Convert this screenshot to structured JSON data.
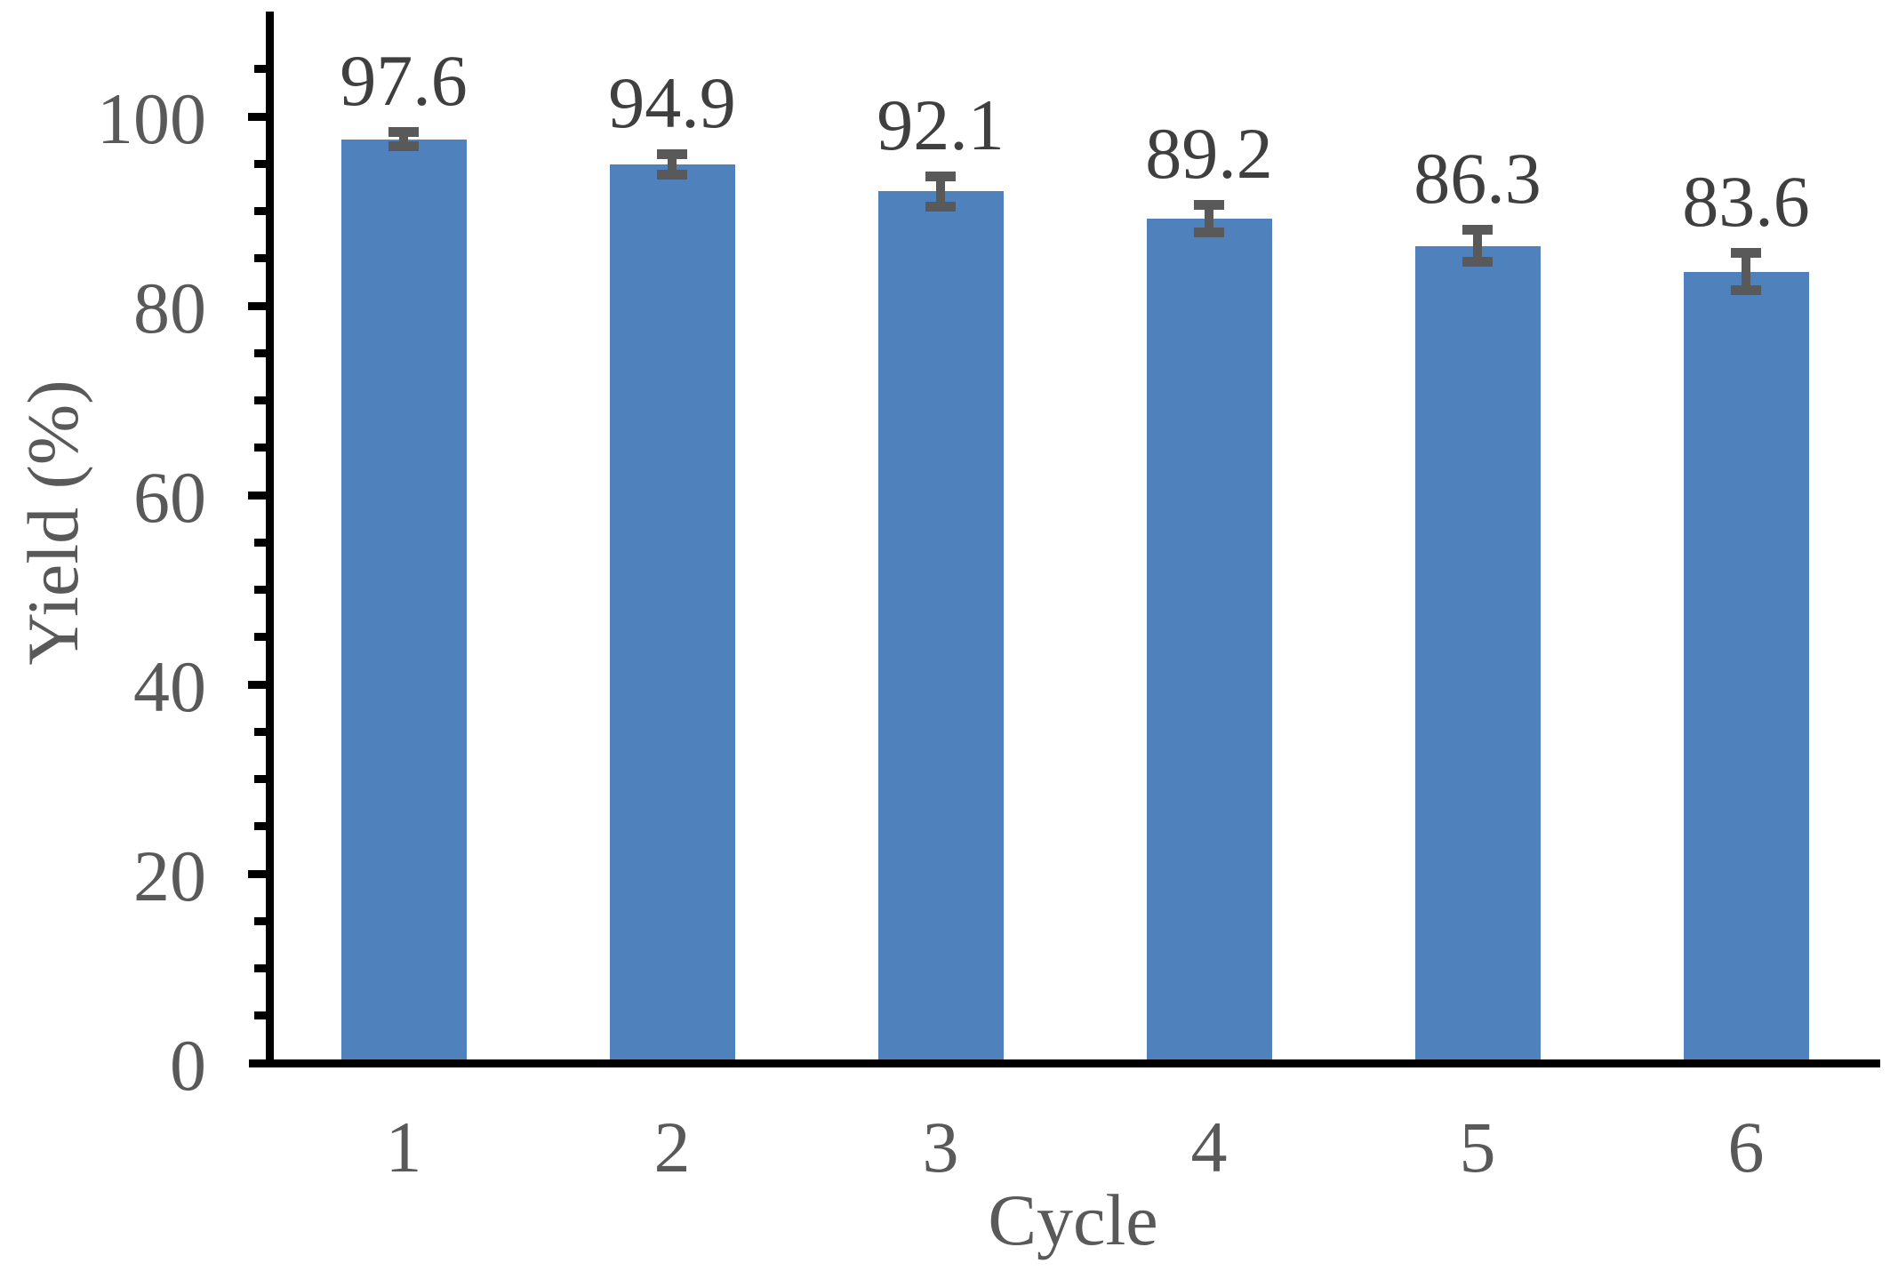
{
  "figure": {
    "background": "#ffffff"
  },
  "chart_data": {
    "type": "bar",
    "title": "",
    "xlabel": "Cycle",
    "ylabel": "Yield (%)",
    "categories": [
      "1",
      "2",
      "3",
      "4",
      "5",
      "6"
    ],
    "values": [
      97.6,
      94.9,
      92.1,
      89.2,
      86.3,
      83.6
    ],
    "errors": [
      1.3,
      1.6,
      2.1,
      2.0,
      2.2,
      2.5
    ],
    "data_labels": [
      "97.6",
      "94.9",
      "92.1",
      "89.2",
      "86.3",
      "83.6"
    ],
    "ylim": [
      0,
      111
    ],
    "yticks_major": [
      0,
      20,
      40,
      60,
      80,
      100
    ],
    "ytick_labels": [
      "0",
      "20",
      "40",
      "60",
      "80",
      "100"
    ],
    "minor_tick_step": 5,
    "grid": false,
    "legend": "none",
    "colors": {
      "bar_fill": "#4f81bd",
      "error_bar": "#595959",
      "axis_line": "#000000",
      "tick_label": "#595959",
      "data_label": "#3f3f3f"
    }
  }
}
